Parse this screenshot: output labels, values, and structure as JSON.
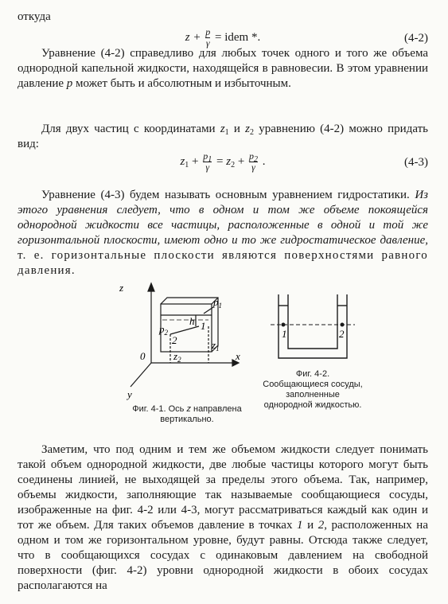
{
  "document": {
    "intro": "откуда",
    "equation_1": {
      "lhs": "z +",
      "num": "p",
      "den": "γ",
      "rhs": "= idem *.",
      "number": "(4-2)"
    },
    "paragraph_1": [
      "Уравнение (4-2) справедливо для любых точек одного и того же объема однородной капельной жидкости, находящейся в равновесии. В этом уравнении давление ",
      "p",
      " может быть и абсолютным и избыточным."
    ],
    "paragraph_2": [
      "Для двух частиц с координатами ",
      "z",
      "1",
      " и ",
      "z",
      "2",
      " уравнению (4-2) можно придать вид:"
    ],
    "equation_2": {
      "runs": [
        "z",
        "1",
        "+",
        "p",
        "1",
        "γ",
        "=",
        "z",
        "2",
        "+",
        "p",
        "2",
        "γ",
        "."
      ],
      "number": "(4-3)"
    },
    "paragraph_3": [
      "Уравнение (4-3) будем называть основным уравнением гидростатики. ",
      "Из этого уравнения следует, что в одном и том же объеме покоящейся однородной жидкости все частицы, расположенные в одной и той же горизонтальной плоскости, имеют одно и то же гидростатическое давление,",
      " т. е. горизонтальные плоскости являются поверхностями равного давления."
    ],
    "figure_1": {
      "labels": {
        "z": "z",
        "y": "y",
        "x": "x",
        "origin": "0",
        "p1": "p",
        "p1_sub": "1",
        "p2": "p",
        "p2_sub": "2",
        "h": "h",
        "point_1": "1",
        "point_2": "2",
        "z1": "z",
        "z1_sub": "1",
        "z2": "z",
        "z2_sub": "2"
      },
      "caption": [
        "Фиг. 4-1. Ось ",
        "z",
        " направлена вертикально."
      ]
    },
    "figure_2": {
      "labels": {
        "point_1": "1",
        "point_2": "2"
      },
      "caption": "Фиг. 4-2. Сообщающиеся сосуды, заполненные однородной жидкостью."
    },
    "paragraph_4": [
      "Заметим, что под одним и тем же объемом жидкости следует понимать такой объем однородной жидкости, две любые частицы которого могут быть соединены линией, не выходящей за пределы этого объема. Так, например, объемы жидкости, заполняющие так называемые сообщающиеся сосуды, изображенные на фиг. 4-2 или 4-3, могут рассматриваться каждый как один и тот же объем. Для таких объемов давление в точках ",
      "1",
      " и ",
      "2",
      ", расположенных на одном и том же горизонтальном уровне, будут равны. Отсюда также следует, что в сообщающихся сосудах с одинаковым давлением на свободной поверхности (фиг. 4-2) уровни однородной жидкости в обоих сосудах располагаются на"
    ]
  }
}
